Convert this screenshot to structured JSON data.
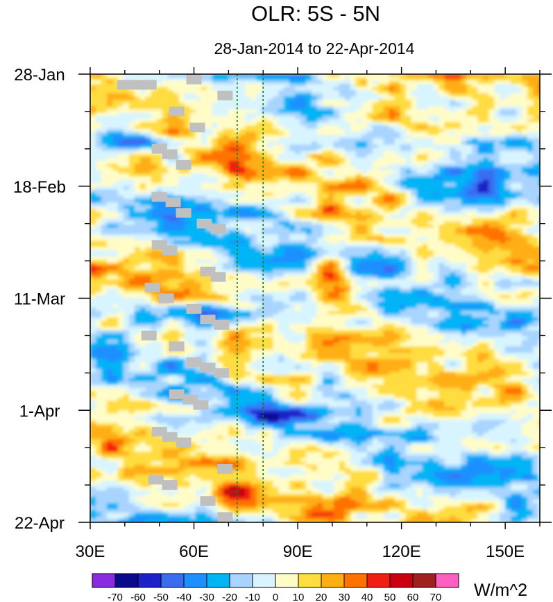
{
  "chart_data": {
    "type": "heatmap",
    "title": "OLR: 5S - 5N",
    "subtitle": "28-Jan-2014 to 22-Apr-2014",
    "xlabel": "",
    "ylabel": "",
    "x_ticks": [
      {
        "label": "30E",
        "value": 30
      },
      {
        "label": "60E",
        "value": 60
      },
      {
        "label": "90E",
        "value": 90
      },
      {
        "label": "120E",
        "value": 120
      },
      {
        "label": "150E",
        "value": 150
      }
    ],
    "xlim": [
      30,
      160
    ],
    "y_ticks": [
      {
        "label": "28-Jan",
        "value": 0
      },
      {
        "label": "18-Feb",
        "value": 21
      },
      {
        "label": "11-Mar",
        "value": 42
      },
      {
        "label": "1-Apr",
        "value": 63
      },
      {
        "label": "22-Apr",
        "value": 84
      }
    ],
    "ylim": [
      0,
      84
    ],
    "reference_lines_lon": [
      72.5,
      80
    ],
    "colorbar": {
      "units": "W/m^2",
      "levels": [
        -70,
        -60,
        -50,
        -40,
        -30,
        -20,
        -10,
        0,
        10,
        20,
        30,
        40,
        50,
        60,
        70
      ],
      "level_labels": [
        "-70",
        "-60",
        "-50",
        "-40",
        "-30",
        "-20",
        "-10",
        "0",
        "10",
        "20",
        "30",
        "40",
        "50",
        "60",
        "70"
      ],
      "colors": [
        "#8a2be2",
        "#0a0a8c",
        "#1a22c8",
        "#3a6cf0",
        "#1e90ff",
        "#00b4f5",
        "#a8d4ff",
        "#d8f4ff",
        "#fffcc8",
        "#ffdc40",
        "#ffae14",
        "#ff7200",
        "#f02010",
        "#c80010",
        "#a02020",
        "#ff60c0"
      ]
    },
    "anomaly_features": [
      {
        "lon_start": 93,
        "lon_end": 106,
        "day_start": 26,
        "day_end": 47,
        "value": 48
      },
      {
        "lon_start": 108,
        "lon_end": 140,
        "day_start": 3,
        "day_end": 12,
        "value": 38
      },
      {
        "lon_start": 105,
        "lon_end": 112,
        "day_start": 0,
        "day_end": 3,
        "value": 55
      },
      {
        "lon_start": 60,
        "lon_end": 80,
        "day_start": 75,
        "day_end": 84,
        "value": 30
      },
      {
        "lon_start": 42,
        "lon_end": 85,
        "day_start": 43,
        "day_end": 48,
        "value": -55
      },
      {
        "lon_start": 72,
        "lon_end": 102,
        "day_start": 62,
        "day_end": 66,
        "value": -58
      },
      {
        "lon_start": 30,
        "lon_end": 55,
        "day_start": 9,
        "day_end": 16,
        "value": -50
      },
      {
        "lon_start": 115,
        "lon_end": 160,
        "day_start": 17,
        "day_end": 28,
        "value": -38
      }
    ],
    "missing_data_blocks": [
      {
        "lon": 40,
        "day": 2
      },
      {
        "lon": 44,
        "day": 2
      },
      {
        "lon": 47,
        "day": 2
      },
      {
        "lon": 60,
        "day": 1
      },
      {
        "lon": 69,
        "day": 4
      },
      {
        "lon": 55,
        "day": 7
      },
      {
        "lon": 61,
        "day": 10
      },
      {
        "lon": 50,
        "day": 14
      },
      {
        "lon": 53,
        "day": 15
      },
      {
        "lon": 57,
        "day": 17
      },
      {
        "lon": 50,
        "day": 23
      },
      {
        "lon": 54,
        "day": 24
      },
      {
        "lon": 57,
        "day": 26
      },
      {
        "lon": 63,
        "day": 28
      },
      {
        "lon": 67,
        "day": 29
      },
      {
        "lon": 50,
        "day": 32
      },
      {
        "lon": 53,
        "day": 33
      },
      {
        "lon": 64,
        "day": 37
      },
      {
        "lon": 67,
        "day": 38
      },
      {
        "lon": 48,
        "day": 40
      },
      {
        "lon": 52,
        "day": 42
      },
      {
        "lon": 60,
        "day": 44
      },
      {
        "lon": 64,
        "day": 46
      },
      {
        "lon": 68,
        "day": 47
      },
      {
        "lon": 47,
        "day": 49
      },
      {
        "lon": 55,
        "day": 51
      },
      {
        "lon": 60,
        "day": 54
      },
      {
        "lon": 64,
        "day": 55
      },
      {
        "lon": 68,
        "day": 56
      },
      {
        "lon": 55,
        "day": 60
      },
      {
        "lon": 59,
        "day": 61
      },
      {
        "lon": 62,
        "day": 62
      },
      {
        "lon": 50,
        "day": 67
      },
      {
        "lon": 53,
        "day": 68
      },
      {
        "lon": 57,
        "day": 69
      },
      {
        "lon": 69,
        "day": 74
      },
      {
        "lon": 49,
        "day": 76
      },
      {
        "lon": 53,
        "day": 77
      },
      {
        "lon": 64,
        "day": 80
      },
      {
        "lon": 69,
        "day": 83
      }
    ]
  }
}
